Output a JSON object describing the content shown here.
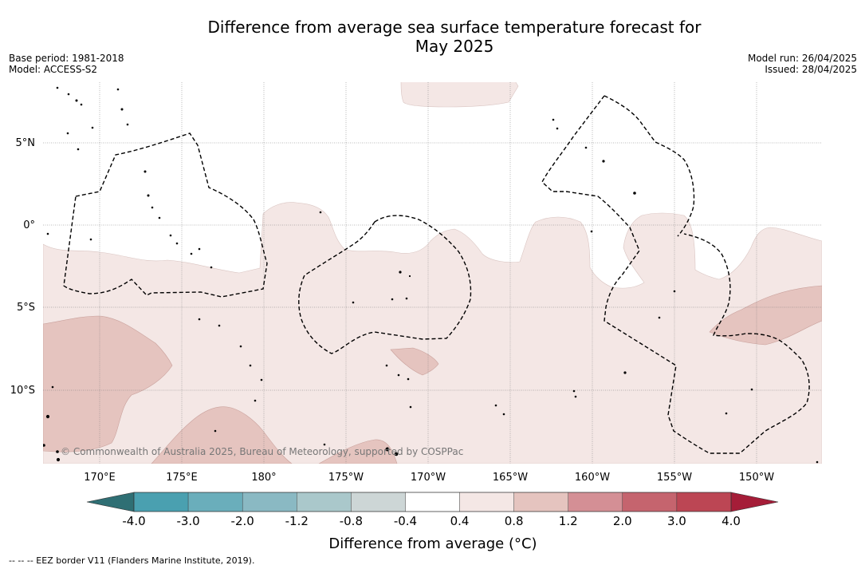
{
  "title": {
    "line1": "Difference from average sea surface temperature forecast for",
    "line2": "May 2025"
  },
  "meta_left": {
    "base_period": "Base period: 1981-2018",
    "model": "Model: ACCESS-S2"
  },
  "meta_right": {
    "model_run": "Model run: 26/04/2025",
    "issued": "Issued: 28/04/2025"
  },
  "map": {
    "lat_labels": [
      "5°N",
      "0°",
      "5°S",
      "10°S"
    ],
    "lon_labels": [
      "170°E",
      "175°E",
      "180°",
      "175°W",
      "170°W",
      "165°W",
      "160°W",
      "155°W",
      "150°W"
    ],
    "copyright": "© Commonwealth of Australia 2025, Bureau of Meteorology, supported by COSPPac",
    "colors": {
      "anomaly_0_4_to_0_8": "#f4e7e5",
      "anomaly_0_8_to_1_2": "#e5c4bf",
      "ocean_neutral": "#ffffff",
      "eez_border": "#000000"
    }
  },
  "colorbar": {
    "label": "Difference from average (°C)",
    "ticks": [
      "-4.0",
      "-3.0",
      "-2.0",
      "-1.2",
      "-0.8",
      "-0.4",
      "0.4",
      "0.8",
      "1.2",
      "2.0",
      "3.0",
      "4.0"
    ],
    "colors": {
      "below_min": "#2f6f74",
      "bins": [
        "#4aa0b0",
        "#6aaebb",
        "#8ab9c3",
        "#aac8cb",
        "#cdd6d6",
        "#ffffff",
        "#f4e7e5",
        "#e5c4bf",
        "#d48f95",
        "#c5646e",
        "#bc4654"
      ],
      "above_max": "#a51d38"
    }
  },
  "footnote": "--  --  -- EEZ border V11 (Flanders Marine Institute, 2019)."
}
